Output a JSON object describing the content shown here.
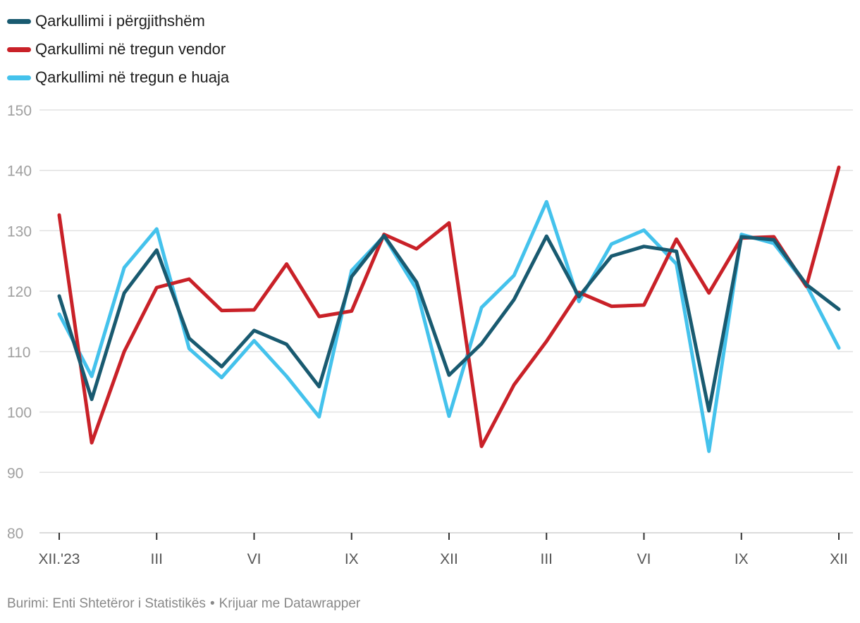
{
  "chart_data": {
    "type": "line",
    "title": "",
    "xlabel": "",
    "ylabel": "",
    "ylim": [
      80,
      150
    ],
    "yticks": [
      80,
      90,
      100,
      110,
      120,
      130,
      140,
      150
    ],
    "x": [
      "XII.'23",
      "I",
      "II",
      "III",
      "IV",
      "V",
      "VI",
      "VII",
      "VIII",
      "IX",
      "X",
      "XI",
      "XII",
      "I",
      "II",
      "III",
      "IV",
      "V",
      "VI",
      "VII",
      "VIII",
      "IX",
      "X",
      "XI",
      "XII"
    ],
    "xtick_labels": [
      "XII.'23",
      "III",
      "VI",
      "IX",
      "XII",
      "III",
      "VI",
      "IX",
      "XII"
    ],
    "xtick_indices": [
      0,
      3,
      6,
      9,
      12,
      15,
      18,
      21,
      24
    ],
    "series": [
      {
        "name": "Qarkullimi në tregun e huaja",
        "color": "#44c2ec",
        "values": [
          116.2,
          105.9,
          123.9,
          130.3,
          110.5,
          105.7,
          111.8,
          105.9,
          99.2,
          123.4,
          129.1,
          120.3,
          99.3,
          117.3,
          122.6,
          134.8,
          118.3,
          127.8,
          130.1,
          124.5,
          93.5,
          129.4,
          127.9,
          121.0,
          110.6
        ]
      },
      {
        "name": "Qarkullimi në tregun vendor",
        "color": "#c92128",
        "values": [
          132.6,
          94.9,
          110.0,
          120.6,
          122.0,
          116.8,
          116.9,
          124.5,
          115.8,
          116.7,
          129.4,
          127.0,
          131.3,
          94.3,
          104.5,
          111.7,
          119.8,
          117.5,
          117.7,
          128.6,
          119.7,
          128.8,
          129.0,
          120.8,
          140.5
        ]
      },
      {
        "name": "Qarkullimi i përgjithshëm",
        "color": "#195a70",
        "values": [
          119.2,
          102.1,
          119.7,
          126.8,
          112.2,
          107.5,
          113.5,
          111.2,
          104.2,
          122.4,
          129.2,
          121.5,
          106.1,
          111.3,
          118.6,
          129.1,
          119.1,
          125.8,
          127.4,
          126.6,
          100.2,
          129.0,
          128.5,
          121.1,
          117.0
        ]
      }
    ]
  },
  "legend": [
    {
      "label": "Qarkullimi i përgjithshëm",
      "color": "#195a70"
    },
    {
      "label": "Qarkullimi në tregun vendor",
      "color": "#c92128"
    },
    {
      "label": "Qarkullimi në tregun e huaja",
      "color": "#44c2ec"
    }
  ],
  "footer": {
    "source": "Burimi: Enti Shtetëror i Statistikës",
    "separator": "•",
    "credit": "Krijuar me Datawrapper"
  }
}
